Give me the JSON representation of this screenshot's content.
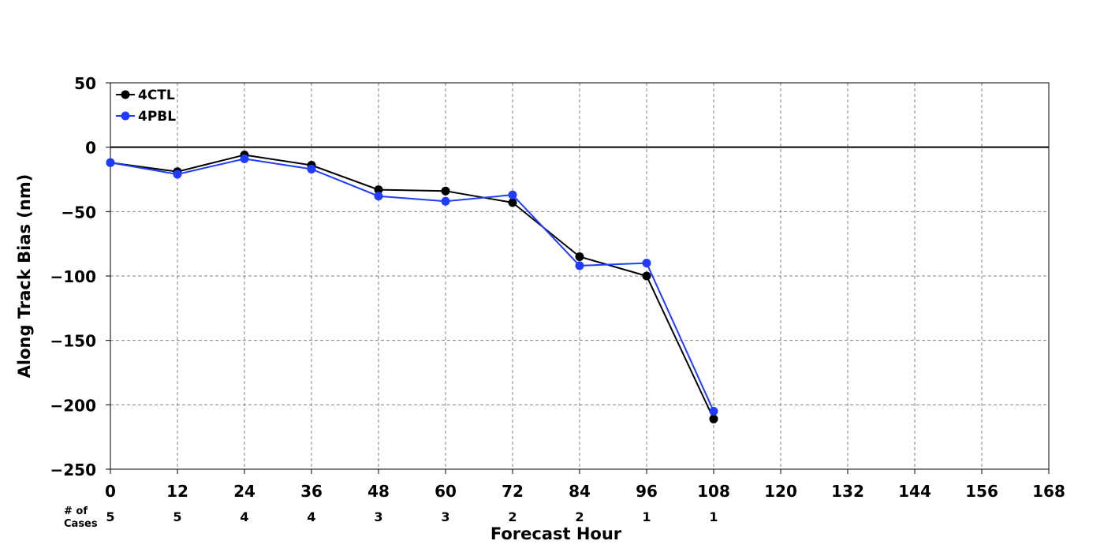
{
  "chart_data": {
    "type": "line",
    "xlabel": "Forecast Hour",
    "ylabel": "Along Track Bias (nm)",
    "xlim": [
      0,
      168
    ],
    "ylim": [
      -250,
      50
    ],
    "xticks": [
      0,
      12,
      24,
      36,
      48,
      60,
      72,
      84,
      96,
      108,
      120,
      132,
      144,
      156,
      168
    ],
    "yticks": [
      50,
      0,
      -50,
      -100,
      -150,
      -200,
      -250
    ],
    "ytick_labels": [
      "50",
      "0",
      "−50",
      "−100",
      "−150",
      "−200",
      "−250"
    ],
    "grid": true,
    "grid_style": "dashed",
    "zero_line": true,
    "legend_position": "top-left",
    "series": [
      {
        "name": "4CTL",
        "color": "#000000",
        "x": [
          0,
          12,
          24,
          36,
          48,
          60,
          72,
          84,
          96,
          108
        ],
        "y": [
          -12,
          -19,
          -6,
          -14,
          -33,
          -34,
          -43,
          -85,
          -100,
          -211
        ]
      },
      {
        "name": "4PBL",
        "color": "#1f3cff",
        "x": [
          0,
          12,
          24,
          36,
          48,
          60,
          72,
          84,
          96,
          108
        ],
        "y": [
          -12,
          -21,
          -9,
          -17,
          -38,
          -42,
          -37,
          -92,
          -90,
          -205
        ]
      }
    ],
    "cases": {
      "label_line1": "# of",
      "label_line2": "Cases",
      "x": [
        0,
        12,
        24,
        36,
        48,
        60,
        72,
        84,
        96,
        108
      ],
      "values": [
        "5",
        "5",
        "4",
        "4",
        "3",
        "3",
        "2",
        "2",
        "1",
        "1"
      ]
    }
  }
}
